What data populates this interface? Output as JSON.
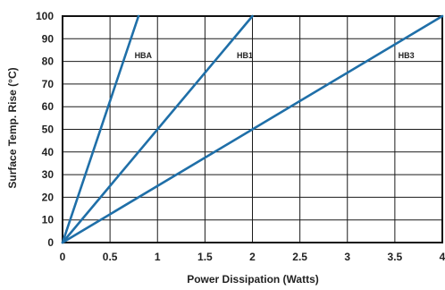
{
  "chart_data": {
    "type": "line",
    "title": "",
    "xlabel": "Power Dissipation (Watts)",
    "ylabel": "Surface Temp. Rise (°C)",
    "xlim": [
      0,
      4
    ],
    "ylim": [
      0,
      100
    ],
    "x_ticks": [
      "0",
      "0.5",
      "1",
      "1.5",
      "2",
      "2.5",
      "3",
      "3.5",
      "4"
    ],
    "y_ticks": [
      "0",
      "10",
      "20",
      "30",
      "40",
      "50",
      "60",
      "70",
      "80",
      "90",
      "100"
    ],
    "grid": true,
    "line_color": "#1f6fa8",
    "series": [
      {
        "name": "HBA",
        "x": [
          0,
          0.8
        ],
        "y": [
          0,
          100
        ],
        "label_at": [
          0.85,
          83
        ]
      },
      {
        "name": "HB1",
        "x": [
          0,
          2.0
        ],
        "y": [
          0,
          100
        ],
        "label_at": [
          1.92,
          83
        ]
      },
      {
        "name": "HB3",
        "x": [
          0,
          4.0
        ],
        "y": [
          0,
          100
        ],
        "label_at": [
          3.62,
          83
        ]
      }
    ]
  }
}
